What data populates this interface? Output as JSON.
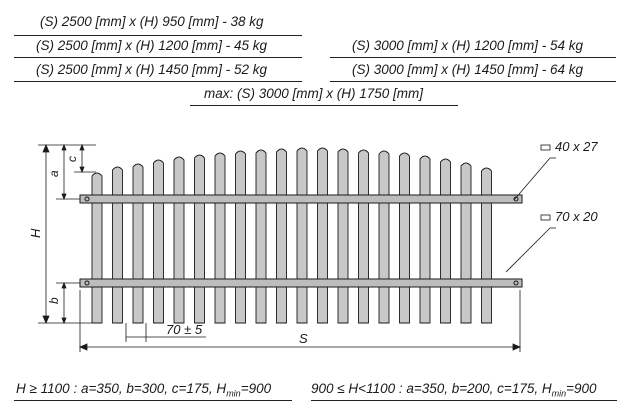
{
  "specs": {
    "left": [
      "(S) 2500 [mm] x (H) 950 [mm]   -  38 kg",
      "(S) 2500 [mm] x (H) 1200 [mm]  -  45 kg",
      "(S) 2500 [mm] x (H) 1450 [mm]  -  52 kg"
    ],
    "right": [
      "(S) 3000 [mm] x (H) 1200 [mm]  -  54 kg",
      "(S) 3000 [mm] x (H) 1450 [mm]  -  64 kg"
    ],
    "max": "max: (S) 3000 [mm] x (H) 1750 [mm]"
  },
  "drawing": {
    "picket_count": 20,
    "labels": {
      "rail_top": "40 x 27",
      "rail_bottom": "70 x 20",
      "gap": "70 ± 5",
      "width": "S",
      "height": "H",
      "a": "a",
      "b": "b",
      "c": "c"
    },
    "colors": {
      "picket_fill": "#c8c8c8",
      "rail_fill": "#bdbdbd",
      "stroke": "#1a1a1a"
    }
  },
  "formulas": {
    "left": {
      "condition": "H ≥ 1100 : a=350, b=300, c=175, H",
      "sub": "min",
      "tail": "=900"
    },
    "right": {
      "condition": "900 ≤ H<1100 : a=350, b=200, c=175, H",
      "sub": "min",
      "tail": "=900"
    }
  }
}
